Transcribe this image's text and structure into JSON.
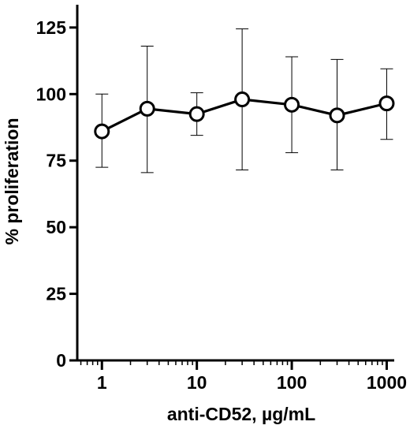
{
  "chart_data": {
    "type": "line",
    "xscale": "log",
    "xlabel": "anti-CD52, µg/mL",
    "ylabel": "% proliferation",
    "xlim": [
      0.55,
      1200
    ],
    "ylim": [
      0,
      130
    ],
    "xticks": [
      1,
      10,
      100,
      1000
    ],
    "xtick_labels": [
      "1",
      "10",
      "100",
      "1000"
    ],
    "yticks": [
      0,
      25,
      50,
      75,
      100,
      125
    ],
    "ytick_labels": [
      "0",
      "25",
      "50",
      "75",
      "100",
      "125"
    ],
    "grid": false,
    "series": [
      {
        "x": [
          1,
          3,
          10,
          30,
          100,
          300,
          1000
        ],
        "y": [
          86,
          94.5,
          92.5,
          98,
          96,
          92,
          96.5
        ],
        "y_upper": [
          100,
          118,
          100.5,
          124.5,
          114,
          113,
          109.5
        ],
        "y_lower": [
          72.5,
          70.5,
          84.5,
          71.5,
          78,
          71.5,
          83
        ],
        "marker": "open-circle",
        "color": "#000000"
      }
    ]
  }
}
